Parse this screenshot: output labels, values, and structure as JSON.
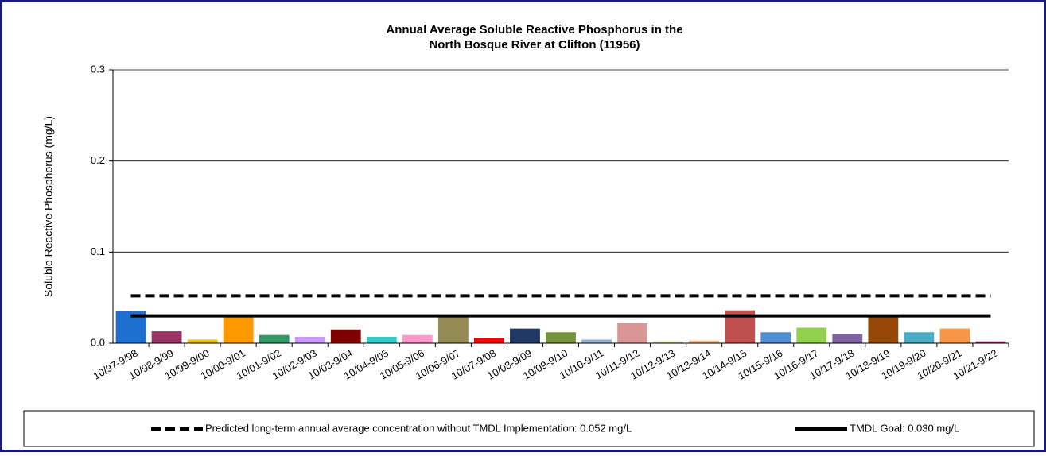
{
  "chart_data": {
    "type": "bar",
    "title": [
      "Annual Average Soluble Reactive Phosphorus in the",
      "North Bosque River at Clifton (11956)"
    ],
    "y_label": "Soluble Reactive Phosphorus (mg/L)",
    "categories": [
      "10/97-9/98",
      "10/98-9/99",
      "10/99-9/00",
      "10/00-9/01",
      "10/01-9/02",
      "10/02-9/03",
      "10/03-9/04",
      "10/04-9/05",
      "10/05-9/06",
      "10/06-9/07",
      "10/07-9/08",
      "10/08-9/09",
      "10/09-9/10",
      "10/10-9/11",
      "10/11-9/12",
      "10/12-9/13",
      "10/13-9/14",
      "10/14-9/15",
      "10/15-9/16",
      "10/16-9/17",
      "10/17-9/18",
      "10/18-9/19",
      "10/19-9/20",
      "10/20-9/21",
      "10/21-9/22"
    ],
    "values": [
      0.035,
      0.013,
      0.004,
      0.029,
      0.009,
      0.007,
      0.015,
      0.007,
      0.009,
      0.03,
      0.006,
      0.016,
      0.012,
      0.004,
      0.022,
      0.002,
      0.003,
      0.036,
      0.012,
      0.017,
      0.01,
      0.03,
      0.012,
      0.016,
      0.002
    ],
    "colors": [
      "#1f6fd0",
      "#993366",
      "#f2c200",
      "#ff9900",
      "#339966",
      "#cc99ff",
      "#800000",
      "#33cccc",
      "#ff99cc",
      "#948a54",
      "#ff0000",
      "#1f3864",
      "#77933c",
      "#95b3d7",
      "#d99694",
      "#c3d69b",
      "#fac090",
      "#c0504d",
      "#558ed5",
      "#92d050",
      "#8064a2",
      "#974706",
      "#4bacc6",
      "#f79646",
      "#8b2b6b"
    ],
    "ylim": [
      0,
      0.3
    ],
    "yticks": [
      {
        "value": 0,
        "label": "0.0"
      },
      0.1,
      0.2,
      0.3
    ],
    "grid": true,
    "reference_lines": [
      {
        "name": "Predicted long-term annual average concentration without TMDL Implementation: 0.052 mg/L",
        "value": 0.052,
        "style": "dashed",
        "color": "#000000"
      },
      {
        "name": "TMDL Goal: 0.030 mg/L",
        "value": 0.03,
        "style": "solid",
        "color": "#000000"
      }
    ]
  }
}
